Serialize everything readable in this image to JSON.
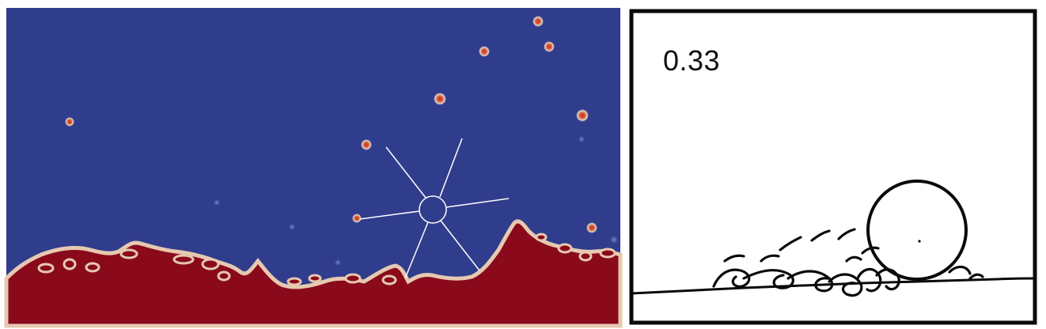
{
  "simulation_panel": {
    "colors": {
      "gas": "#303c8c",
      "liquid": "#8a0a1c",
      "interface": "#e6c9b0",
      "overlay_lines": "#ffffff"
    }
  },
  "sketch_panel": {
    "time_label": "0.33",
    "colors": {
      "background": "#ffffff",
      "ink": "#0a0a0a"
    }
  }
}
